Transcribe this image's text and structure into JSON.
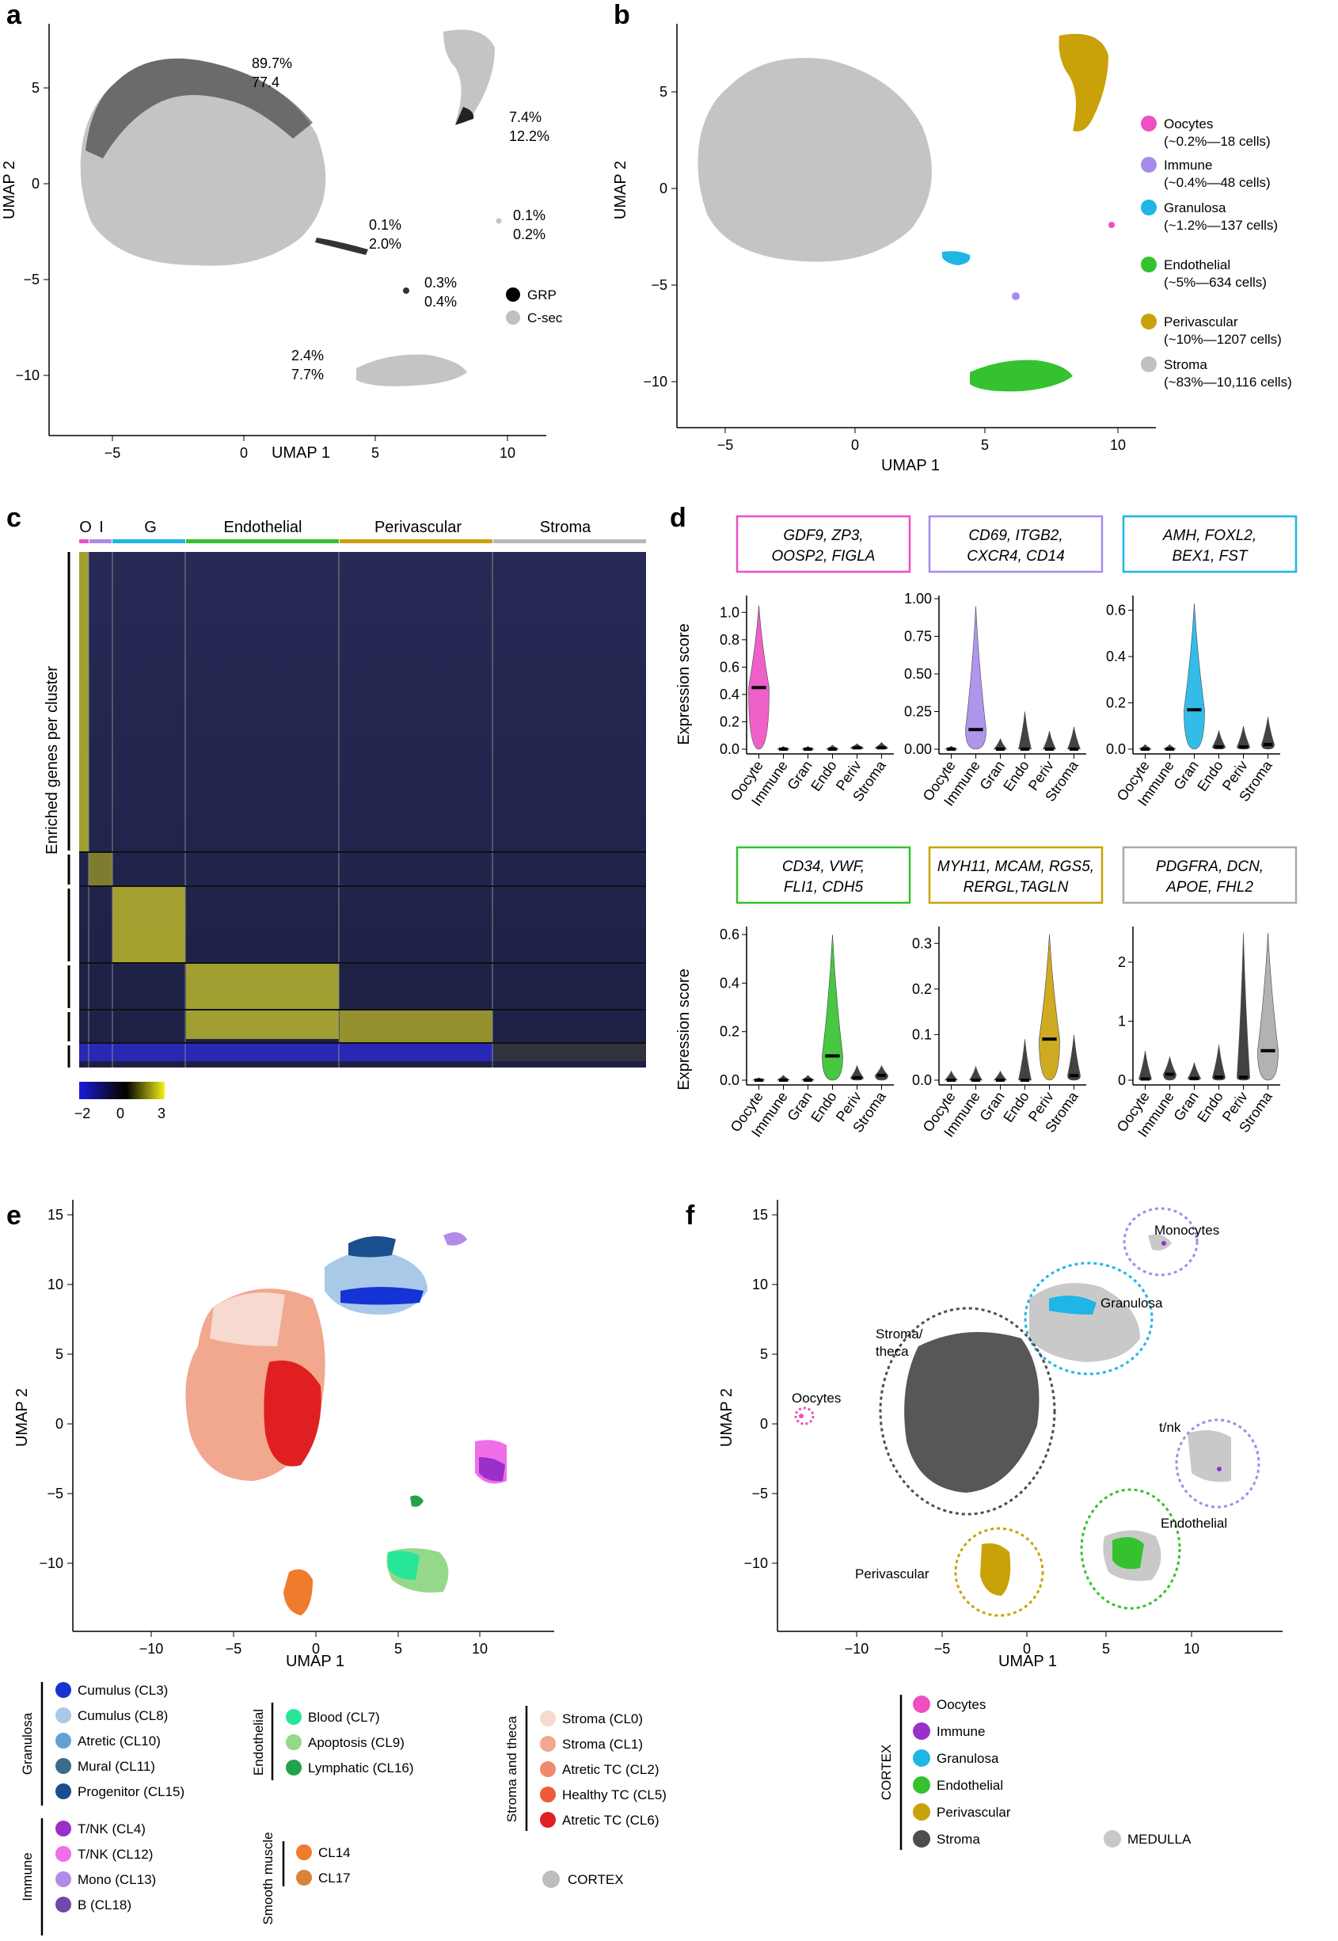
{
  "panels": {
    "a": "a",
    "b": "b",
    "c": "c",
    "d": "d",
    "e": "e",
    "f": "f"
  },
  "panel_a": {
    "xlabel": "UMAP 1",
    "ylabel": "UMAP 2",
    "xticks": [
      "−5",
      "0",
      "5",
      "10"
    ],
    "yticks": [
      "5",
      "0",
      "−5",
      "−10"
    ],
    "annotations": [
      {
        "line1": "89.7%",
        "line2": "77.4"
      },
      {
        "line1": "7.4%",
        "line2": "12.2%"
      },
      {
        "line1": "0.1%",
        "line2": "0.2%"
      },
      {
        "line1": "0.1%",
        "line2": "2.0%"
      },
      {
        "line1": "0.3%",
        "line2": "0.4%"
      },
      {
        "line1": "2.4%",
        "line2": "7.7%"
      }
    ],
    "legend": [
      {
        "label": "GRP",
        "color": "#000000"
      },
      {
        "label": "C-sec",
        "color": "#c0c0c0"
      }
    ]
  },
  "panel_b": {
    "xlabel": "UMAP 1",
    "ylabel": "UMAP 2",
    "xticks": [
      "−5",
      "0",
      "5",
      "10"
    ],
    "yticks": [
      "5",
      "0",
      "−5",
      "−10"
    ],
    "legend": [
      {
        "name": "Oocytes",
        "detail": "(~0.2%—18 cells)",
        "color": "#ee4fc3"
      },
      {
        "name": "Immune",
        "detail": "(~0.4%—48 cells)",
        "color": "#a78bea"
      },
      {
        "name": "Granulosa",
        "detail": "(~1.2%—137 cells)",
        "color": "#1fb5e6"
      },
      {
        "name": "Endothelial",
        "detail": "(~5%—634 cells)",
        "color": "#34c22e"
      },
      {
        "name": "Perivascular",
        "detail": "(~10%—1207 cells)",
        "color": "#c9a20a"
      },
      {
        "name": "Stroma",
        "detail": "(~83%—10,116 cells)",
        "color": "#c0c0c0"
      }
    ]
  },
  "panel_c": {
    "columns": [
      {
        "label": "O",
        "color": "#ee4fc3"
      },
      {
        "label": "I",
        "color": "#a78bea"
      },
      {
        "label": "G",
        "color": "#1fb5e6"
      },
      {
        "label": "Endothelial",
        "color": "#34c22e"
      },
      {
        "label": "Perivascular",
        "color": "#c9a20a"
      },
      {
        "label": "Stroma",
        "color": "#b7b7b7"
      }
    ],
    "ylabel": "Enriched genes per cluster",
    "colorbar_ticks": [
      "−2",
      "0",
      "3"
    ]
  },
  "panel_d": {
    "ylabel": "Expression score",
    "categories": [
      "Oocyte",
      "Immune",
      "Gran",
      "Endo",
      "Periv",
      "Stroma"
    ],
    "violins": [
      {
        "genes": "GDF9, ZP3, OOSP2, FIGLA",
        "genes_line1": "GDF9, ZP3,",
        "genes_line2": "OOSP2, FIGLA",
        "color": "#ee4fc3",
        "yticks": [
          "0.0",
          "0.2",
          "0.4",
          "0.6",
          "0.8",
          "1.0"
        ],
        "ymax": 1.1,
        "medians": [
          0.45,
          0.0,
          0.0,
          0.0,
          0.01,
          0.01
        ],
        "maxes": [
          1.05,
          0.02,
          0.02,
          0.03,
          0.04,
          0.05
        ]
      },
      {
        "genes": "CD69, ITGB2, CXCR4, CD14",
        "genes_line1": "CD69, ITGB2,",
        "genes_line2": "CXCR4, CD14",
        "color": "#a78bea",
        "yticks": [
          "0.00",
          "0.25",
          "0.50",
          "0.75",
          "1.00"
        ],
        "ymax": 1.0,
        "medians": [
          0.0,
          0.13,
          0.0,
          0.0,
          0.0,
          0.0
        ],
        "maxes": [
          0.02,
          0.95,
          0.07,
          0.25,
          0.12,
          0.15
        ]
      },
      {
        "genes": "AMH, FOXL2, BEX1, FST",
        "genes_line1": "AMH, FOXL2,",
        "genes_line2": "BEX1, FST",
        "color": "#1fb5e6",
        "yticks": [
          "0.0",
          "0.2",
          "0.4",
          "0.6"
        ],
        "ymax": 0.65,
        "medians": [
          0.0,
          0.0,
          0.17,
          0.01,
          0.01,
          0.02
        ],
        "maxes": [
          0.02,
          0.02,
          0.63,
          0.08,
          0.1,
          0.14
        ]
      },
      {
        "genes": "CD34, VWF, FLI1, CDH5",
        "genes_line1": "CD34, VWF,",
        "genes_line2": "FLI1, CDH5",
        "color": "#34c22e",
        "yticks": [
          "0.0",
          "0.2",
          "0.4",
          "0.6"
        ],
        "ymax": 0.62,
        "medians": [
          0.0,
          0.0,
          0.0,
          0.1,
          0.01,
          0.02
        ],
        "maxes": [
          0.01,
          0.02,
          0.02,
          0.6,
          0.06,
          0.06
        ]
      },
      {
        "genes": "MYH11, MCAM, RGS5, RERGL, TAGLN",
        "genes_line1": "MYH11, MCAM, RGS5,",
        "genes_line2": "RERGL,TAGLN",
        "color": "#c9a20a",
        "yticks": [
          "0.0",
          "0.1",
          "0.2",
          "0.3"
        ],
        "ymax": 0.33,
        "medians": [
          0.0,
          0.0,
          0.0,
          0.0,
          0.09,
          0.01
        ],
        "maxes": [
          0.02,
          0.03,
          0.02,
          0.09,
          0.32,
          0.1
        ]
      },
      {
        "genes": "PDGFRA, DCN, APOE, FHL2",
        "genes_line1": "PDGFRA, DCN,",
        "genes_line2": "APOE, FHL2",
        "color": "#aaaaaa",
        "yticks": [
          "0",
          "1",
          "2"
        ],
        "ymax": 2.55,
        "medians": [
          0.02,
          0.1,
          0.03,
          0.05,
          0.05,
          0.5
        ],
        "maxes": [
          0.5,
          0.4,
          0.3,
          0.6,
          2.5,
          2.5
        ]
      }
    ]
  },
  "panel_e": {
    "xlabel": "UMAP 1",
    "ylabel": "UMAP 2",
    "xticks": [
      "−10",
      "−5",
      "0",
      "5",
      "10"
    ],
    "yticks": [
      "15",
      "10",
      "5",
      "0",
      "−5",
      "−10"
    ],
    "legend_groups": [
      {
        "group": "Granulosa",
        "items": [
          {
            "label": "Cumulus (CL3)",
            "color": "#1633d6"
          },
          {
            "label": "Cumulus (CL8)",
            "color": "#a8c9e8"
          },
          {
            "label": "Atretic (CL10)",
            "color": "#5fa3d6"
          },
          {
            "label": "Mural (CL11)",
            "color": "#3c6a8a"
          },
          {
            "label": "Progenitor (CL15)",
            "color": "#1a4f8f"
          }
        ]
      },
      {
        "group": "Immune",
        "items": [
          {
            "label": "T/NK (CL4)",
            "color": "#9b2fc9"
          },
          {
            "label": "T/NK (CL12)",
            "color": "#f06ee8"
          },
          {
            "label": "Mono (CL13)",
            "color": "#b08ce6"
          },
          {
            "label": "B (CL18)",
            "color": "#6c4aa8"
          }
        ]
      },
      {
        "group": "Endothelial",
        "items": [
          {
            "label": "Blood (CL7)",
            "color": "#27e69a"
          },
          {
            "label": "Apoptosis (CL9)",
            "color": "#94d98a"
          },
          {
            "label": "Lymphatic (CL16)",
            "color": "#24a24a"
          }
        ]
      },
      {
        "group": "Smooth muscle",
        "items": [
          {
            "label": "CL14",
            "color": "#ef7b2c"
          },
          {
            "label": "CL17",
            "color": "#d9833a"
          }
        ]
      },
      {
        "group": "Stroma and theca",
        "items": [
          {
            "label": "Stroma (CL0)",
            "color": "#f6d9cf"
          },
          {
            "label": "Stroma (CL1)",
            "color": "#f2a78f"
          },
          {
            "label": "Atretic TC (CL2)",
            "color": "#ef8a6c"
          },
          {
            "label": "Healthy TC (CL5)",
            "color": "#ee5a3a"
          },
          {
            "label": "Atretic TC (CL6)",
            "color": "#e02020"
          }
        ]
      }
    ],
    "cortex_label": "CORTEX",
    "cortex_color": "#bdbdbd"
  },
  "panel_f": {
    "xlabel": "UMAP 1",
    "ylabel": "UMAP 2",
    "xticks": [
      "−10",
      "−5",
      "0",
      "5",
      "10"
    ],
    "yticks": [
      "15",
      "10",
      "5",
      "0",
      "−5",
      "−10"
    ],
    "circle_labels": [
      "Monocytes",
      "Granulosa",
      "Stroma/",
      "theca",
      "Oocytes",
      "t/nk",
      "Endothelial",
      "Perivascular"
    ],
    "legend_group": "CORTEX",
    "legend": [
      {
        "label": "Oocytes",
        "color": "#ee4fc3"
      },
      {
        "label": "Immune",
        "color": "#9b2fc9"
      },
      {
        "label": "Granulosa",
        "color": "#1fb5e6"
      },
      {
        "label": "Endothelial",
        "color": "#34c22e"
      },
      {
        "label": "Perivascular",
        "color": "#c9a20a"
      },
      {
        "label": "Stroma",
        "color": "#4d4d4d"
      }
    ],
    "medulla_label": "MEDULLA",
    "medulla_color": "#c8c8c8"
  }
}
